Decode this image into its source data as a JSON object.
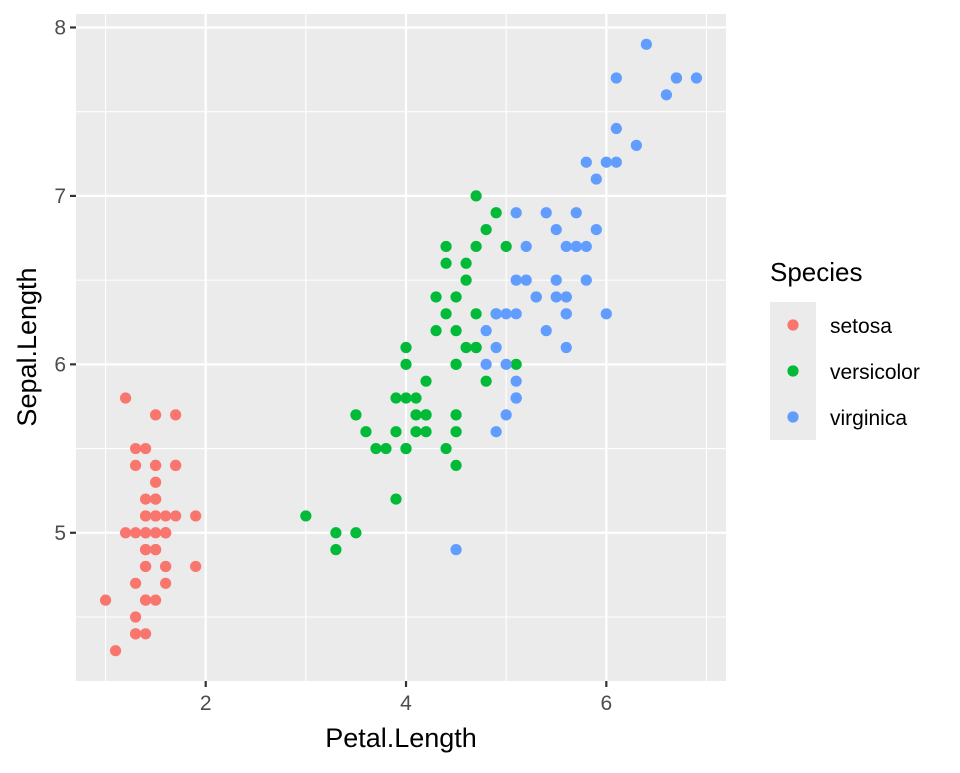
{
  "chart_data": {
    "type": "scatter",
    "xlabel": "Petal.Length",
    "ylabel": "Sepal.Length",
    "xlim": [
      0.705,
      7.195
    ],
    "ylim": [
      4.12,
      8.08
    ],
    "x_ticks": [
      2,
      4,
      6
    ],
    "y_ticks": [
      5,
      6,
      7,
      8
    ],
    "x_tick_labels": [
      "2",
      "4",
      "6"
    ],
    "y_tick_labels": [
      "5",
      "6",
      "7",
      "8"
    ],
    "grid": true,
    "legend_position": "right",
    "legend": {
      "title": "Species"
    },
    "series": [
      {
        "name": "setosa",
        "color": "#F8766D",
        "points": [
          [
            1.4,
            5.1
          ],
          [
            1.4,
            4.9
          ],
          [
            1.3,
            4.7
          ],
          [
            1.5,
            4.6
          ],
          [
            1.4,
            5.0
          ],
          [
            1.7,
            5.4
          ],
          [
            1.4,
            4.6
          ],
          [
            1.5,
            5.0
          ],
          [
            1.4,
            4.4
          ],
          [
            1.5,
            4.9
          ],
          [
            1.5,
            5.4
          ],
          [
            1.6,
            4.8
          ],
          [
            1.4,
            4.8
          ],
          [
            1.1,
            4.3
          ],
          [
            1.2,
            5.8
          ],
          [
            1.5,
            5.7
          ],
          [
            1.3,
            5.4
          ],
          [
            1.4,
            5.1
          ],
          [
            1.7,
            5.7
          ],
          [
            1.5,
            5.1
          ],
          [
            1.7,
            5.4
          ],
          [
            1.5,
            5.1
          ],
          [
            1.0,
            4.6
          ],
          [
            1.7,
            5.1
          ],
          [
            1.9,
            4.8
          ],
          [
            1.6,
            5.0
          ],
          [
            1.6,
            5.0
          ],
          [
            1.5,
            5.2
          ],
          [
            1.4,
            5.2
          ],
          [
            1.6,
            4.7
          ],
          [
            1.6,
            4.8
          ],
          [
            1.5,
            5.4
          ],
          [
            1.5,
            5.2
          ],
          [
            1.4,
            5.5
          ],
          [
            1.5,
            4.9
          ],
          [
            1.2,
            5.0
          ],
          [
            1.3,
            5.5
          ],
          [
            1.4,
            4.9
          ],
          [
            1.3,
            4.4
          ],
          [
            1.5,
            5.1
          ],
          [
            1.3,
            5.0
          ],
          [
            1.3,
            4.5
          ],
          [
            1.3,
            4.4
          ],
          [
            1.6,
            5.0
          ],
          [
            1.9,
            5.1
          ],
          [
            1.4,
            4.8
          ],
          [
            1.6,
            5.1
          ],
          [
            1.4,
            4.6
          ],
          [
            1.5,
            5.3
          ],
          [
            1.4,
            5.0
          ]
        ]
      },
      {
        "name": "versicolor",
        "color": "#00BA38",
        "points": [
          [
            4.7,
            7.0
          ],
          [
            4.5,
            6.4
          ],
          [
            4.9,
            6.9
          ],
          [
            4.0,
            5.5
          ],
          [
            4.6,
            6.5
          ],
          [
            4.5,
            5.7
          ],
          [
            4.7,
            6.3
          ],
          [
            3.3,
            4.9
          ],
          [
            4.6,
            6.6
          ],
          [
            3.9,
            5.2
          ],
          [
            3.5,
            5.0
          ],
          [
            4.2,
            5.9
          ],
          [
            4.0,
            6.0
          ],
          [
            4.7,
            6.1
          ],
          [
            3.6,
            5.6
          ],
          [
            4.4,
            6.7
          ],
          [
            4.5,
            5.6
          ],
          [
            4.1,
            5.8
          ],
          [
            4.5,
            6.2
          ],
          [
            3.9,
            5.6
          ],
          [
            4.8,
            5.9
          ],
          [
            4.0,
            6.1
          ],
          [
            4.9,
            6.3
          ],
          [
            4.7,
            6.1
          ],
          [
            4.3,
            6.4
          ],
          [
            4.4,
            6.6
          ],
          [
            4.8,
            6.8
          ],
          [
            5.0,
            6.7
          ],
          [
            4.5,
            6.0
          ],
          [
            3.5,
            5.7
          ],
          [
            3.8,
            5.5
          ],
          [
            3.7,
            5.5
          ],
          [
            3.9,
            5.8
          ],
          [
            5.1,
            6.0
          ],
          [
            4.5,
            5.4
          ],
          [
            4.5,
            6.0
          ],
          [
            4.7,
            6.7
          ],
          [
            4.4,
            6.3
          ],
          [
            4.1,
            5.6
          ],
          [
            4.0,
            5.5
          ],
          [
            4.4,
            5.5
          ],
          [
            4.6,
            6.1
          ],
          [
            4.0,
            5.8
          ],
          [
            3.3,
            5.0
          ],
          [
            4.2,
            5.6
          ],
          [
            4.2,
            5.7
          ],
          [
            4.2,
            5.7
          ],
          [
            4.3,
            6.2
          ],
          [
            3.0,
            5.1
          ],
          [
            4.1,
            5.7
          ]
        ]
      },
      {
        "name": "virginica",
        "color": "#619CFF",
        "points": [
          [
            6.0,
            6.3
          ],
          [
            5.1,
            5.8
          ],
          [
            5.9,
            7.1
          ],
          [
            5.6,
            6.3
          ],
          [
            5.8,
            6.5
          ],
          [
            6.6,
            7.6
          ],
          [
            4.5,
            4.9
          ],
          [
            6.3,
            7.3
          ],
          [
            5.8,
            6.7
          ],
          [
            6.1,
            7.2
          ],
          [
            5.1,
            6.5
          ],
          [
            5.3,
            6.4
          ],
          [
            5.5,
            6.8
          ],
          [
            5.0,
            5.7
          ],
          [
            5.1,
            5.8
          ],
          [
            5.3,
            6.4
          ],
          [
            5.5,
            6.5
          ],
          [
            6.7,
            7.7
          ],
          [
            6.9,
            7.7
          ],
          [
            5.0,
            6.0
          ],
          [
            5.7,
            6.9
          ],
          [
            4.9,
            5.6
          ],
          [
            6.7,
            7.7
          ],
          [
            4.9,
            6.3
          ],
          [
            5.7,
            6.7
          ],
          [
            6.0,
            7.2
          ],
          [
            4.8,
            6.2
          ],
          [
            4.9,
            6.1
          ],
          [
            5.6,
            6.4
          ],
          [
            5.8,
            7.2
          ],
          [
            6.1,
            7.4
          ],
          [
            6.4,
            7.9
          ],
          [
            5.6,
            6.4
          ],
          [
            5.1,
            6.3
          ],
          [
            5.6,
            6.1
          ],
          [
            6.1,
            7.7
          ],
          [
            5.6,
            6.3
          ],
          [
            5.5,
            6.4
          ],
          [
            4.8,
            6.0
          ],
          [
            5.4,
            6.9
          ],
          [
            5.6,
            6.7
          ],
          [
            5.1,
            6.9
          ],
          [
            5.1,
            5.8
          ],
          [
            5.9,
            6.8
          ],
          [
            5.7,
            6.7
          ],
          [
            5.2,
            6.7
          ],
          [
            5.0,
            6.3
          ],
          [
            5.2,
            6.5
          ],
          [
            5.4,
            6.2
          ],
          [
            5.1,
            5.9
          ]
        ]
      }
    ]
  }
}
